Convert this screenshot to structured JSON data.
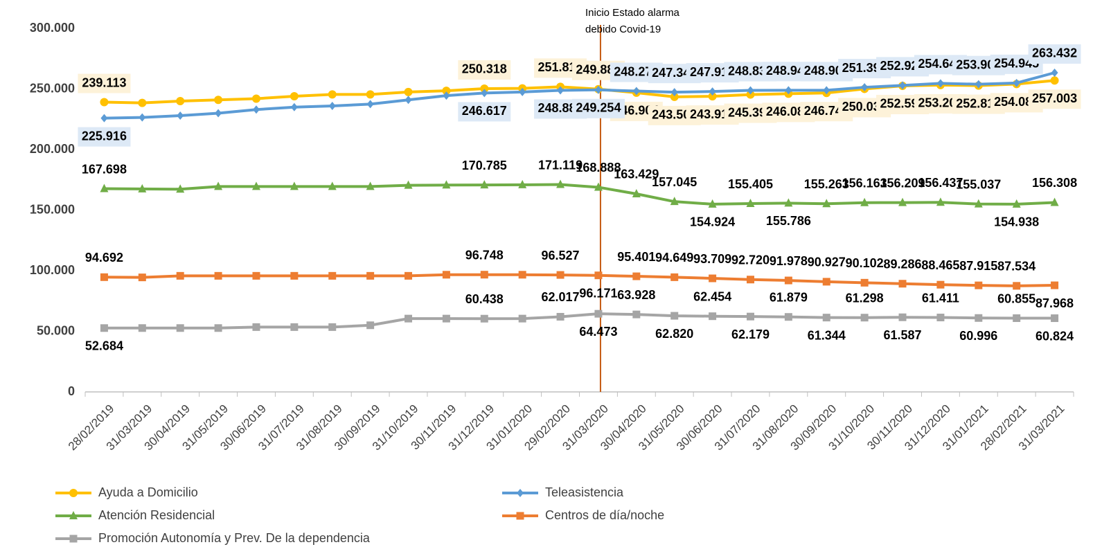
{
  "chart_data": {
    "type": "line",
    "categories": [
      "28/02/2019",
      "31/03/2019",
      "30/04/2019",
      "31/05/2019",
      "30/06/2019",
      "31/07/2019",
      "31/08/2019",
      "30/09/2019",
      "31/10/2019",
      "30/11/2019",
      "31/12/2019",
      "31/01/2020",
      "29/02/2020",
      "31/03/2020",
      "30/04/2020",
      "31/05/2020",
      "30/06/2020",
      "31/07/2020",
      "31/08/2020",
      "30/09/2020",
      "31/10/2020",
      "30/11/2020",
      "31/12/2020",
      "31/01/2021",
      "28/02/2021",
      "31/03/2021"
    ],
    "ylim": [
      0,
      300000
    ],
    "yticks": [
      0,
      {
        "value": 50000,
        "label": "50.000"
      },
      {
        "value": 100000,
        "label": "100.000"
      },
      {
        "value": 150000,
        "label": "150.000"
      },
      {
        "value": 200000,
        "label": "200.000"
      },
      {
        "value": 250000,
        "label": "250.000"
      },
      {
        "value": 300000,
        "label": "300.000"
      }
    ],
    "annotation": {
      "lines": [
        "Inicio Estado alarma",
        "debido Covid-19"
      ],
      "x": "31/03/2020"
    },
    "series": [
      {
        "name": "Ayuda a Domicilio",
        "color": "#ffc000",
        "marker": "circle",
        "values": [
          239113,
          238500,
          240000,
          241000,
          242000,
          244000,
          245500,
          245500,
          247500,
          248500,
          250318,
          250500,
          251812,
          249883,
          246904,
          243508,
          243917,
          245390,
          246080,
          246743,
          250035,
          252591,
          253202,
          252816,
          254080,
          257003
        ],
        "value_labels": [
          "239.113",
          null,
          null,
          null,
          null,
          null,
          null,
          null,
          null,
          null,
          "250.318",
          null,
          "251.812",
          "249.883",
          "246.904",
          "243.508",
          "243.917",
          "245.390",
          "246.080",
          "246.743",
          "250.035",
          "252.591",
          "253.202",
          "252.816",
          "254.080",
          "257.003"
        ]
      },
      {
        "name": "Teleasistencia",
        "color": "#5b9bd5",
        "marker": "diamond",
        "values": [
          225916,
          226500,
          228000,
          230000,
          233000,
          235000,
          236000,
          237500,
          241000,
          244500,
          246617,
          247500,
          248883,
          249254,
          248279,
          247346,
          247917,
          248837,
          248948,
          248905,
          251393,
          252920,
          254644,
          253900,
          254945,
          263432
        ],
        "value_labels": [
          "225.916",
          null,
          null,
          null,
          null,
          null,
          null,
          null,
          null,
          null,
          "246.617",
          null,
          "248.883",
          "249.254",
          "248.279",
          "247.346",
          "247.917",
          "248.837",
          "248.948",
          "248.905",
          "251.393",
          "252.920",
          "254.644",
          "253.900",
          "254.945",
          "263.432"
        ]
      },
      {
        "name": "Atención Residencial",
        "color": "#70ad47",
        "marker": "triangle",
        "values": [
          167698,
          167500,
          167300,
          169500,
          169500,
          169500,
          169500,
          169500,
          170500,
          170700,
          170785,
          170900,
          171119,
          168888,
          163429,
          157045,
          154924,
          155405,
          155786,
          155263,
          156163,
          156209,
          156437,
          155037,
          154938,
          156308
        ],
        "value_labels": [
          "167.698",
          null,
          null,
          null,
          null,
          null,
          null,
          null,
          null,
          null,
          "170.785",
          null,
          "171.119",
          "168.888",
          "163.429",
          "157.045",
          "154.924",
          "155.405",
          "155.786",
          "155.263",
          "156.163",
          "156.209",
          "156.437",
          "155.037",
          "154.938",
          "156.308"
        ]
      },
      {
        "name": "Centros de día/noche",
        "color": "#ed7d31",
        "marker": "square",
        "values": [
          94692,
          94500,
          95800,
          95800,
          95800,
          95800,
          95800,
          95800,
          95800,
          96700,
          96748,
          96700,
          96527,
          96171,
          95401,
          94649,
          93709,
          92720,
          91978,
          90927,
          90102,
          89286,
          88465,
          87915,
          87534,
          87968
        ],
        "value_labels": [
          "94.692",
          null,
          null,
          null,
          null,
          null,
          null,
          null,
          null,
          null,
          "96.748",
          null,
          "96.527",
          "96.171",
          "95.401",
          "94.649",
          "93.709",
          "92.720",
          "91.978",
          "90.927",
          "90.102",
          "89.286",
          "88.465",
          "87.915",
          "87.534",
          "87.968"
        ]
      },
      {
        "name": "Promoción Autonomía y Prev. De la dependencia",
        "color": "#a5a5a5",
        "marker": "square",
        "values": [
          52684,
          52700,
          52700,
          52700,
          53500,
          53500,
          53500,
          55000,
          60500,
          60500,
          60438,
          60500,
          62017,
          64473,
          63928,
          62820,
          62454,
          62179,
          61879,
          61344,
          61298,
          61587,
          61411,
          60996,
          60855,
          60824
        ],
        "value_labels": [
          "52.684",
          null,
          null,
          null,
          null,
          null,
          null,
          null,
          null,
          null,
          "60.438",
          null,
          "62.017",
          "64.473",
          "63.928",
          "62.820",
          "62.454",
          "62.179",
          "61.879",
          "61.344",
          "61.298",
          "61.587",
          "61.411",
          "60.996",
          "60.855",
          "60.824"
        ]
      }
    ]
  }
}
